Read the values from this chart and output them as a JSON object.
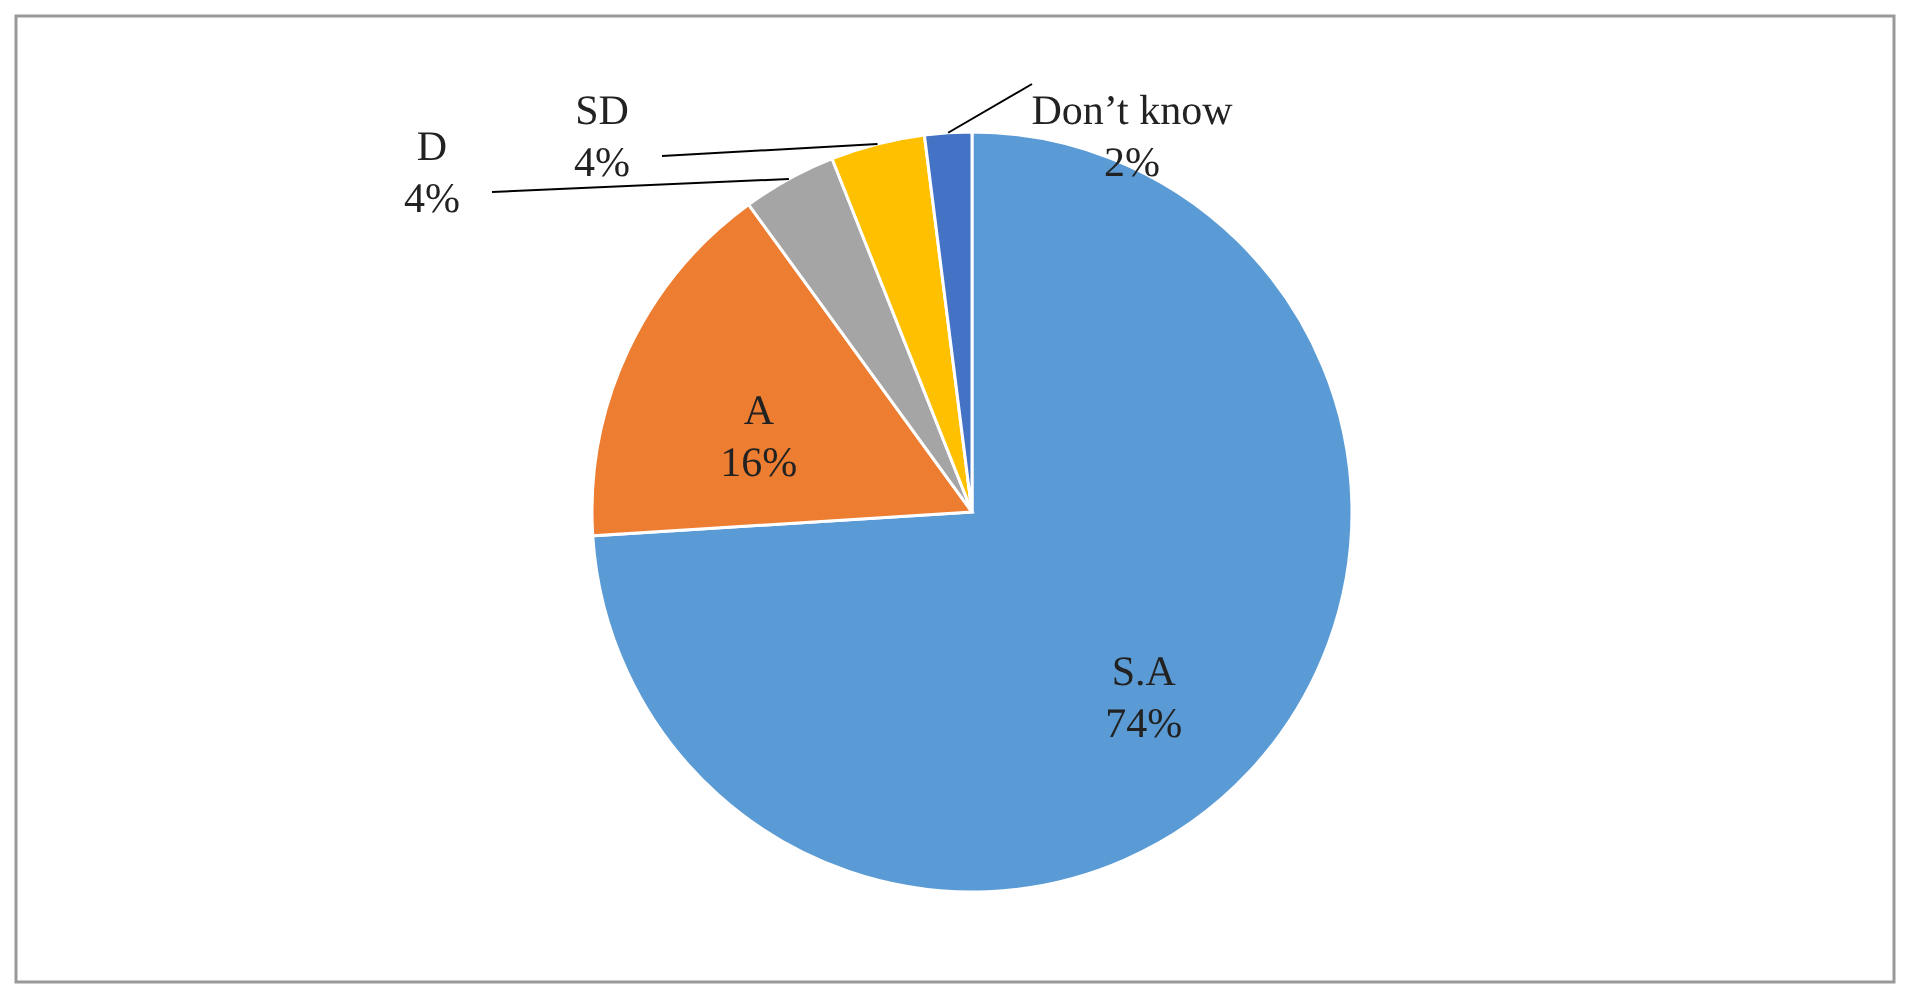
{
  "chart_data": {
    "type": "pie",
    "categories": [
      "S.A",
      "A",
      "D",
      "SD",
      "Don’t know"
    ],
    "values": [
      74,
      16,
      4,
      4,
      2
    ],
    "value_labels": [
      "74%",
      "16%",
      "4%",
      "4%",
      "2%"
    ],
    "colors": [
      "#5b9bd5",
      "#ed7d31",
      "#a5a5a5",
      "#ffc000",
      "#4472c4"
    ]
  }
}
